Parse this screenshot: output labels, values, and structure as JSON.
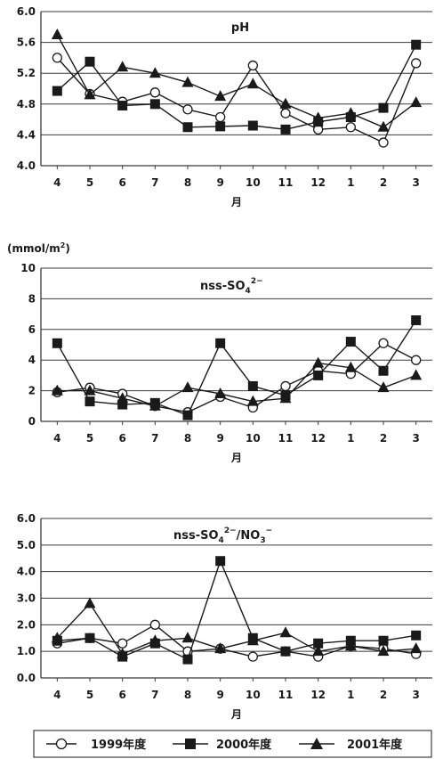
{
  "chart_data": [
    {
      "type": "line",
      "title": "pH",
      "xlabel": "月",
      "ylabel": "",
      "categories": [
        "4",
        "5",
        "6",
        "7",
        "8",
        "9",
        "10",
        "11",
        "12",
        "1",
        "2",
        "3"
      ],
      "ylim": [
        4.0,
        6.0
      ],
      "yticks": [
        "4.0",
        "4.4",
        "4.8",
        "5.2",
        "5.6",
        "6.0"
      ],
      "grid": true,
      "series": [
        {
          "name": "1999年度",
          "values": [
            5.4,
            4.93,
            4.83,
            4.95,
            4.73,
            4.63,
            5.3,
            4.68,
            4.47,
            4.5,
            4.3,
            5.33
          ]
        },
        {
          "name": "2000年度",
          "values": [
            4.97,
            5.35,
            4.78,
            4.8,
            4.5,
            4.51,
            4.52,
            4.47,
            4.57,
            4.63,
            4.75,
            5.57
          ]
        },
        {
          "name": "2001年度",
          "values": [
            5.7,
            4.92,
            5.28,
            5.2,
            5.08,
            4.9,
            5.06,
            4.8,
            4.62,
            4.68,
            4.5,
            4.82
          ]
        }
      ]
    },
    {
      "type": "line",
      "title": "nss-SO",
      "title_sub": "4",
      "title_sup": "2−",
      "unit_label": "(mmol/m",
      "unit_sup": "2",
      "unit_close": ")",
      "xlabel": "月",
      "ylabel": "",
      "categories": [
        "4",
        "5",
        "6",
        "7",
        "8",
        "9",
        "10",
        "11",
        "12",
        "1",
        "2",
        "3"
      ],
      "ylim": [
        0,
        10
      ],
      "yticks": [
        "0",
        "2",
        "4",
        "6",
        "8",
        "10"
      ],
      "grid": true,
      "series": [
        {
          "name": "1999年度",
          "values": [
            1.9,
            2.2,
            1.8,
            1.0,
            0.6,
            1.6,
            0.9,
            2.3,
            3.3,
            3.1,
            5.1,
            4.0
          ]
        },
        {
          "name": "2000年度",
          "values": [
            5.1,
            1.3,
            1.1,
            1.2,
            0.4,
            5.1,
            2.3,
            1.7,
            3.0,
            5.2,
            3.3,
            6.6
          ]
        },
        {
          "name": "2001年度",
          "values": [
            2.0,
            2.0,
            1.5,
            1.0,
            2.2,
            1.8,
            1.3,
            1.5,
            3.8,
            3.5,
            2.2,
            3.0
          ]
        }
      ]
    },
    {
      "type": "line",
      "title": "nss-SO",
      "title_sub": "4",
      "title_sup": "2−",
      "title_rest": "/NO",
      "title_sub2": "3",
      "title_sup2": "−",
      "xlabel": "月",
      "ylabel": "",
      "categories": [
        "4",
        "5",
        "6",
        "7",
        "8",
        "9",
        "10",
        "11",
        "12",
        "1",
        "2",
        "3"
      ],
      "ylim": [
        0,
        6
      ],
      "yticks": [
        "0.0",
        "1.0",
        "2.0",
        "3.0",
        "4.0",
        "5.0",
        "6.0"
      ],
      "grid": true,
      "series": [
        {
          "name": "1999年度",
          "values": [
            1.3,
            1.5,
            1.3,
            2.0,
            1.0,
            1.1,
            0.8,
            1.0,
            0.8,
            1.2,
            1.1,
            0.9
          ]
        },
        {
          "name": "2000年度",
          "values": [
            1.4,
            1.5,
            0.8,
            1.3,
            0.7,
            4.4,
            1.5,
            1.0,
            1.3,
            1.4,
            1.4,
            1.6
          ]
        },
        {
          "name": "2001年度",
          "values": [
            1.5,
            2.8,
            0.9,
            1.4,
            1.5,
            1.1,
            1.4,
            1.7,
            1.0,
            1.2,
            1.0,
            1.1
          ]
        }
      ]
    }
  ],
  "legend": {
    "items": [
      {
        "label": "1999年度",
        "marker": "circle-open"
      },
      {
        "label": "2000年度",
        "marker": "square-filled"
      },
      {
        "label": "2001年度",
        "marker": "triangle-filled"
      }
    ]
  },
  "colors": {
    "ink": "#1a1a1a",
    "grid": "#3a3a3a",
    "background": "#ffffff"
  }
}
